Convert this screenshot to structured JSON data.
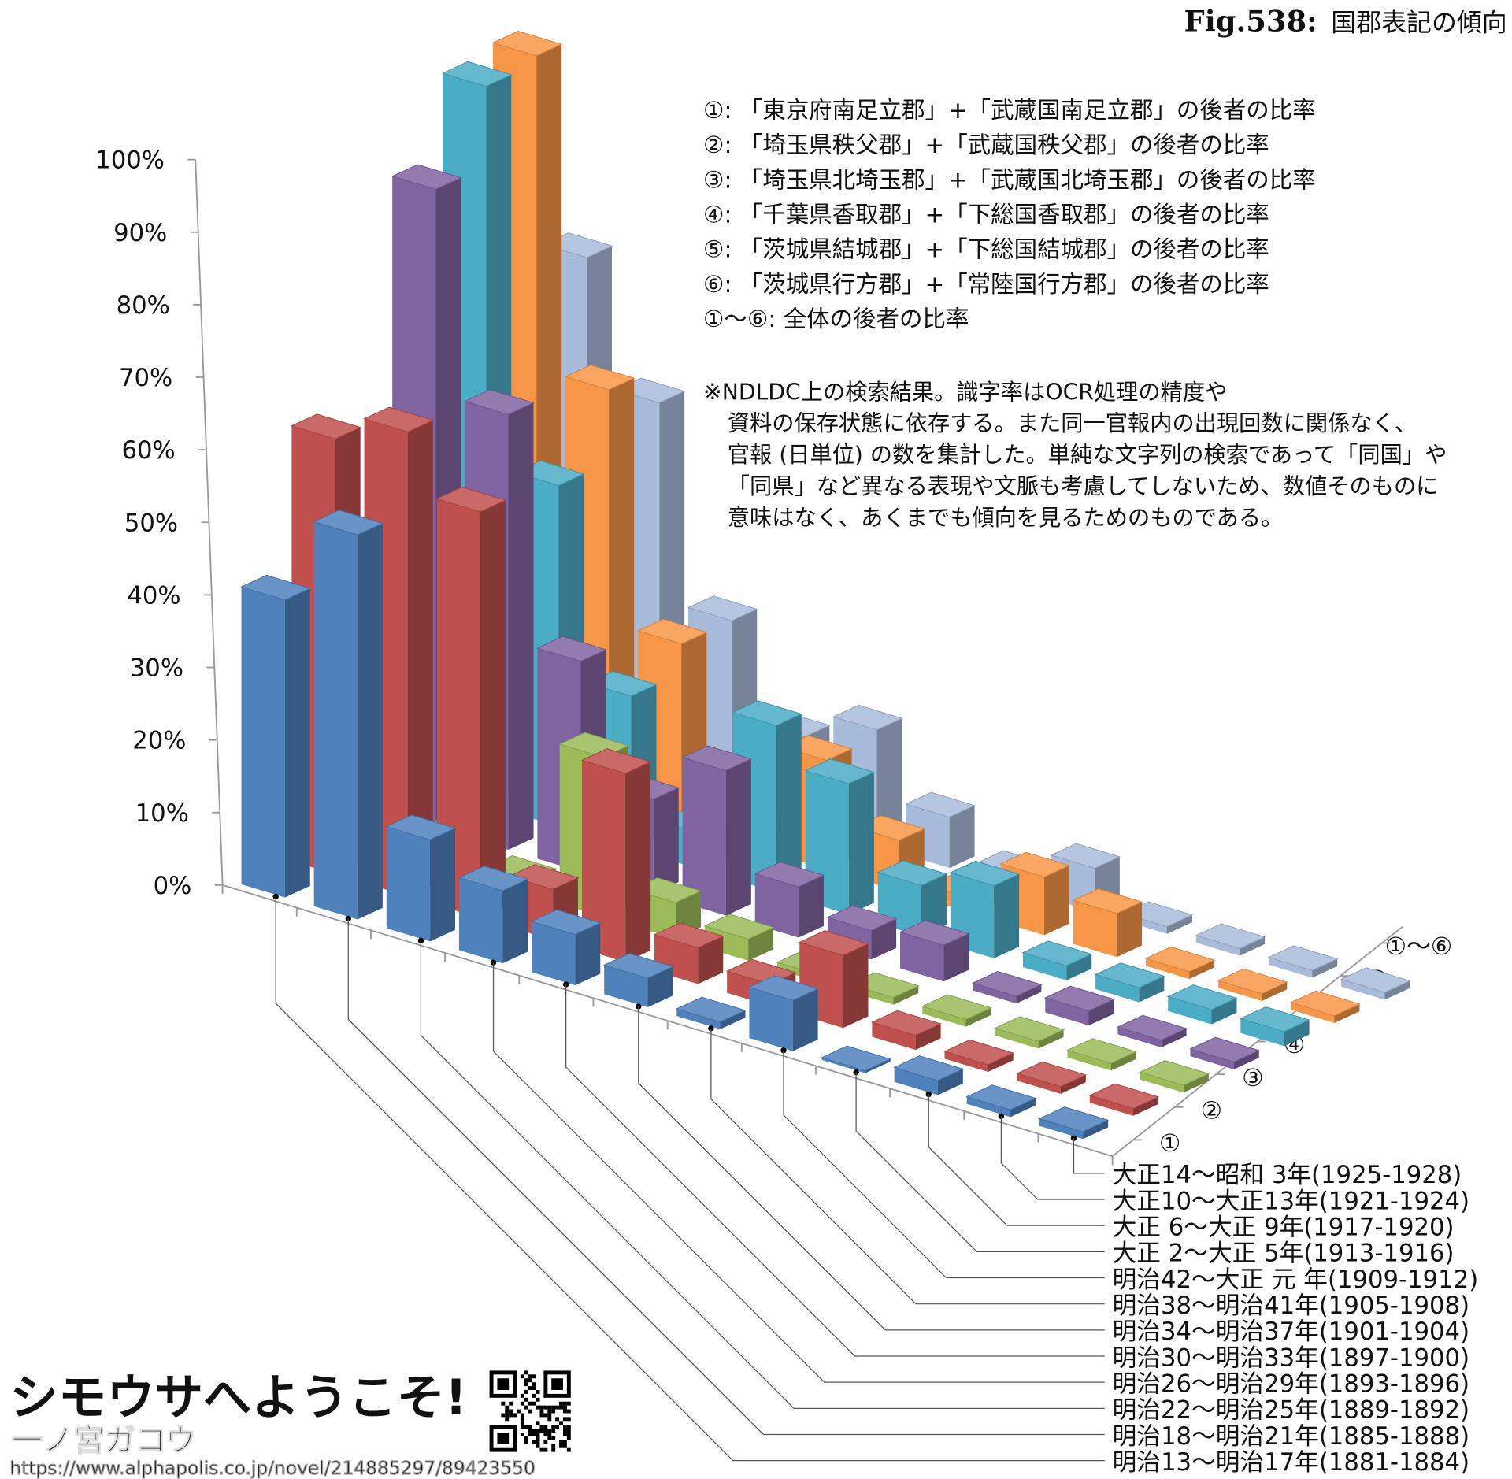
{
  "figure": {
    "fig_label": "Fig.538:",
    "title": "国郡表記の傾向"
  },
  "legend": [
    "①: 「東京府南足立郡」+「武蔵国南足立郡」の後者の比率",
    "②: 「埼玉県秩父郡」+「武蔵国秩父郡」の後者の比率",
    "③: 「埼玉県北埼玉郡」+「武蔵国北埼玉郡」の後者の比率",
    "④: 「千葉県香取郡」+「下総国香取郡」の後者の比率",
    "⑤: 「茨城県結城郡」+「下総国結城郡」の後者の比率",
    "⑥: 「茨城県行方郡」+「常陸国行方郡」の後者の比率",
    "①〜⑥: 全体の後者の比率"
  ],
  "note": [
    "※NDLDC上の検索結果。識字率はOCR処理の精度や",
    "資料の保存状態に依存する。また同一官報内の出現回数に関係なく、",
    "官報 (日単位) の数を集計した。単純な文字列の検索であって「同国」や",
    "「同県」など異なる表現や文脈も考慮してしないため、数値そのものに",
    "意味はなく、あくまでも傾向を見るためのものである。"
  ],
  "chart_data": {
    "type": "bar",
    "variant": "3d-grouped-depth",
    "ylim": [
      0,
      100
    ],
    "yticks": [
      "0%",
      "10%",
      "20%",
      "30%",
      "40%",
      "50%",
      "60%",
      "70%",
      "80%",
      "90%",
      "100%"
    ],
    "grid": false,
    "categories": [
      "明治13〜明治17年(1881-1884)",
      "明治18〜明治21年(1885-1888)",
      "明治22〜明治25年(1889-1892)",
      "明治26〜明治29年(1893-1896)",
      "明治30〜明治33年(1897-1900)",
      "明治34〜明治37年(1901-1904)",
      "明治38〜明治41年(1905-1908)",
      "明治42〜大正 元 年(1909-1912)",
      "大正  2〜大正  5年(1913-1916)",
      "大正  6〜大正  9年(1917-1920)",
      "大正10〜大正13年(1921-1924)",
      "大正14〜昭和  3年(1925-1928)"
    ],
    "series": [
      {
        "name": "①",
        "color": "#4f81bd",
        "values": [
          41,
          53,
          14,
          10,
          7,
          4,
          1,
          7,
          0,
          2,
          1,
          1
        ]
      },
      {
        "name": "②",
        "color": "#c0504d",
        "values": [
          60,
          64,
          56,
          7,
          26,
          5,
          3,
          10,
          2,
          1,
          1,
          1
        ]
      },
      {
        "name": "③",
        "color": "#9bbb59",
        "values": [
          3,
          4,
          2,
          22,
          5,
          3,
          1,
          1,
          1,
          1,
          1,
          1
        ]
      },
      {
        "name": "④",
        "color": "#8064a2",
        "values": [
          88,
          60,
          29,
          13,
          20,
          7,
          4,
          5,
          1,
          2,
          1,
          1
        ]
      },
      {
        "name": "⑤",
        "color": "#4bacc6",
        "values": [
          99,
          47,
          21,
          5,
          23,
          18,
          7,
          10,
          2,
          2,
          2,
          2
        ]
      },
      {
        "name": "⑥",
        "color": "#f79646",
        "values": [
          100,
          57,
          25,
          3,
          15,
          7,
          2,
          8,
          6,
          1,
          1,
          1
        ]
      },
      {
        "name": "①〜⑥",
        "color": "#a9bbdb",
        "values": [
          69,
          52,
          25,
          12,
          16,
          7,
          2,
          6,
          1,
          1,
          1,
          1
        ]
      }
    ]
  },
  "watermark": {
    "headline": "シモウサへようこそ!",
    "author": "一ノ宮ガコウ",
    "url": "https://www.alphapolis.co.jp/novel/214885297/89423550",
    "headline_color": "#66b0d0"
  }
}
